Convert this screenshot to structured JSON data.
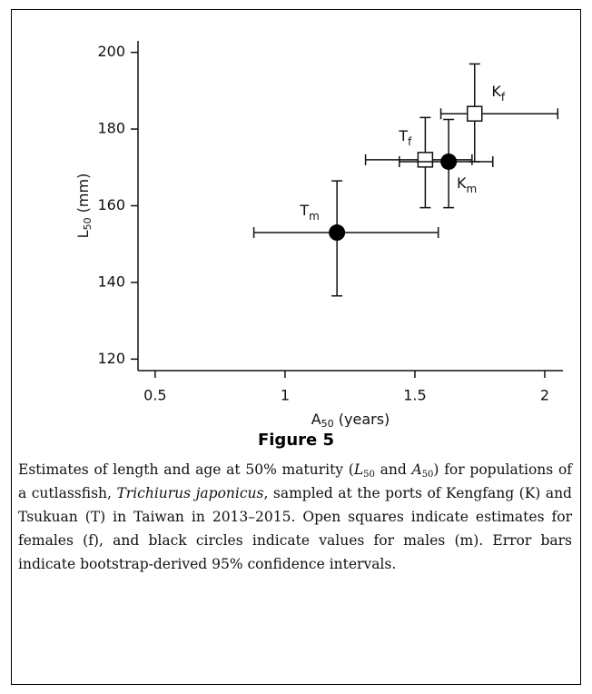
{
  "chart_data": {
    "type": "errorbar-scatter",
    "xlabel": {
      "main": "A",
      "sub": "50",
      "rest": " (years)"
    },
    "ylabel": {
      "main": "L",
      "sub": "50",
      "rest": " (mm)"
    },
    "xlim": [
      0.434,
      2.07
    ],
    "xticks": [
      0.5,
      1.0,
      1.5,
      2.0
    ],
    "ylim": [
      117,
      203
    ],
    "yticks": [
      120,
      140,
      160,
      180,
      200
    ],
    "grid": false,
    "points": [
      {
        "label": "T",
        "sub": "m",
        "marker": "circle",
        "x": 1.2,
        "y": 153,
        "x_low": 0.88,
        "x_high": 1.59,
        "y_low": 136.5,
        "y_high": 166.5
      },
      {
        "label": "T",
        "sub": "f",
        "marker": "square",
        "x": 1.54,
        "y": 172,
        "x_low": 1.31,
        "x_high": 1.72,
        "y_low": 159.5,
        "y_high": 183
      },
      {
        "label": "K",
        "sub": "m",
        "marker": "circle",
        "x": 1.63,
        "y": 171.5,
        "x_low": 1.44,
        "x_high": 1.8,
        "y_low": 159.5,
        "y_high": 182.5
      },
      {
        "label": "K",
        "sub": "f",
        "marker": "square",
        "x": 1.73,
        "y": 184,
        "x_low": 1.6,
        "x_high": 2.05,
        "y_low": 171.5,
        "y_high": 197
      }
    ]
  },
  "figure_label": "Figure 5",
  "caption": [
    {
      "text": "Estimates of length and age at 50% maturity (",
      "style": "normal"
    },
    {
      "text": "L",
      "style": "italic"
    },
    {
      "text": "50",
      "style": "sub"
    },
    {
      "text": " and ",
      "style": "normal"
    },
    {
      "text": "A",
      "style": "italic"
    },
    {
      "text": "50",
      "style": "sub"
    },
    {
      "text": ") for populations of a cutlassfish, ",
      "style": "normal"
    },
    {
      "text": "Trichiurus japonicus",
      "style": "italic"
    },
    {
      "text": ", sampled at the ports of Kengfang (K) and Tsukuan (T) in Taiwan in 2013–2015. Open squares indicate estimates for females (f), and black circles indicate values for males (m). Error bars indicate bootstrap-derived 95% confidence intervals.",
      "style": "normal"
    }
  ]
}
